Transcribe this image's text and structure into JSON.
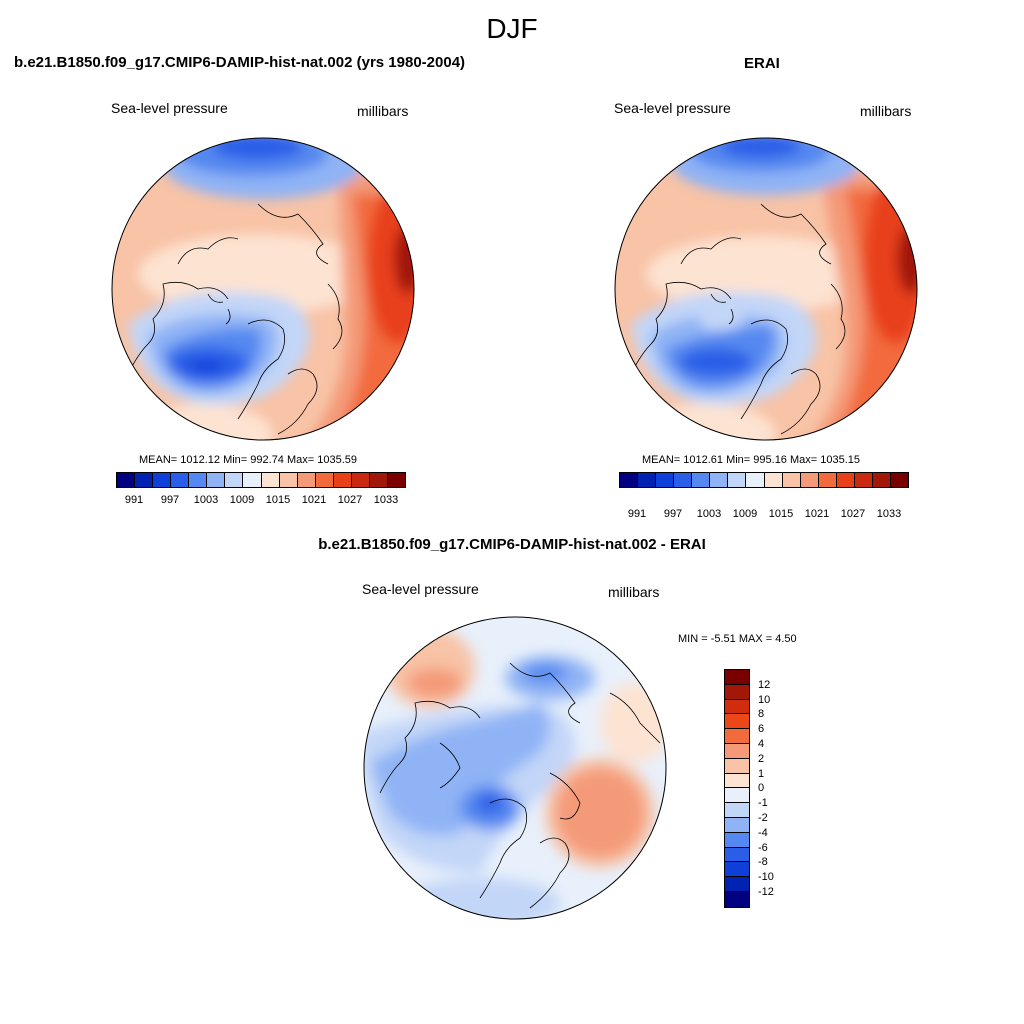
{
  "figure": {
    "title": "DJF",
    "variable": "Sea-level pressure",
    "units": "millibars"
  },
  "panels": {
    "model": {
      "title": "b.e21.B1850.f09_g17.CMIP6-DAMIP-hist-nat.002 (yrs 1980-2004)",
      "stats": "MEAN= 1012.12  Min= 992.74  Max= 1035.59"
    },
    "obs": {
      "title": "ERAI",
      "stats": "MEAN= 1012.61  Min= 995.16  Max= 1035.15"
    },
    "diff": {
      "title": "b.e21.B1850.f09_g17.CMIP6-DAMIP-hist-nat.002 - ERAI",
      "stats": "MIN =  -5.51 MAX =   4.50"
    }
  },
  "colorbars": {
    "abs": {
      "colors": [
        "#000080",
        "#0022b3",
        "#0f3fd9",
        "#2a5ee8",
        "#5588f0",
        "#8fb3f5",
        "#c2d6f8",
        "#e8f0fb",
        "#fde3d2",
        "#f8c3a6",
        "#f49a78",
        "#f26b3d",
        "#e8411a",
        "#c9290f",
        "#a11708",
        "#7a0000"
      ],
      "labels": [
        "991",
        "997",
        "1003",
        "1009",
        "1015",
        "1021",
        "1027",
        "1033"
      ]
    },
    "diff": {
      "colors": [
        "#7a0000",
        "#a11708",
        "#d02c0e",
        "#ed4719",
        "#f26b3d",
        "#f49a78",
        "#f8c3a6",
        "#fde3d2",
        "#e8f0fb",
        "#c2d6f8",
        "#8fb3f5",
        "#5588f0",
        "#2a5ee8",
        "#0f3fd9",
        "#0022b3",
        "#000080"
      ],
      "labels": [
        "12",
        "10",
        "8",
        "6",
        "4",
        "2",
        "1",
        "0",
        "-1",
        "-2",
        "-4",
        "-6",
        "-8",
        "-10",
        "-12"
      ]
    }
  },
  "chart_data": {
    "type": "polar-stereographic contour maps",
    "projection": "north polar",
    "abs_levels": [
      991,
      994,
      997,
      1000,
      1003,
      1006,
      1009,
      1012,
      1015,
      1018,
      1021,
      1024,
      1027,
      1030,
      1033
    ],
    "diff_levels": [
      -12,
      -10,
      -8,
      -6,
      -4,
      -2,
      -1,
      0,
      1,
      2,
      4,
      6,
      8,
      10,
      12
    ]
  }
}
